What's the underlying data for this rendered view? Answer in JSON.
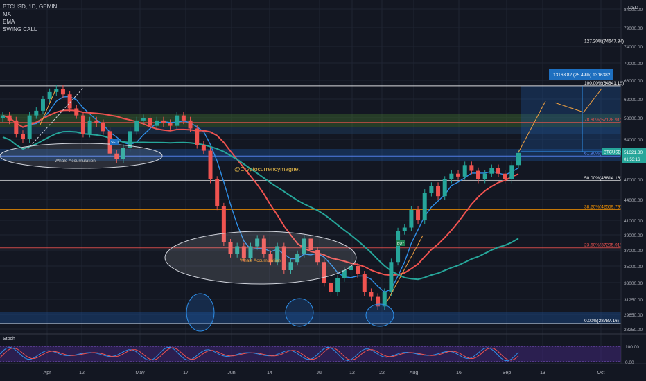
{
  "header": {
    "symbol_line": "BTCUSD, 1D, GEMINI",
    "indicators": [
      "MA",
      "EMA",
      "SWING CALL"
    ],
    "currency": "USD"
  },
  "watermark": "@Cryptocurrencymagnet",
  "annotations": {
    "whale_1": "Whale Accumulation",
    "whale_2": "Whale Accumulation",
    "measure": "13163.82 (25.49%) 1316382",
    "sell_tag": "SELL",
    "buy_tag": "BUY"
  },
  "price_tag": {
    "symbol": "BTCUSD",
    "price": "51621.30",
    "timer": "01:53:16",
    "value": 51621.3
  },
  "fib_levels": [
    {
      "label": "127.20%(74647.84)",
      "price": 74647.84,
      "color": "#ffffff"
    },
    {
      "label": "100.00%(64841.15)",
      "price": 64841.15,
      "color": "#ffffff"
    },
    {
      "label": "78.60%(57128.91)",
      "price": 57128.91,
      "color": "#ef5350"
    },
    {
      "label": "61.80%(51071.36)",
      "price": 51071.36,
      "color": "#5d8bff"
    },
    {
      "label": "50.00%(46814.16)",
      "price": 46814.16,
      "color": "#ffffff"
    },
    {
      "label": "38.20%(42559.79)",
      "price": 42559.79,
      "color": "#ff9800"
    },
    {
      "label": "23.60%(37295.91)",
      "price": 37295.91,
      "color": "#ef5350"
    },
    {
      "label": "0.00%(28787.16)",
      "price": 28787.16,
      "color": "#ffffff"
    }
  ],
  "chart_data": {
    "type": "candlestick",
    "title": "BTCUSD, 1D, GEMINI",
    "y_axis_labels": [
      "84000.00",
      "79000.00",
      "74000.00",
      "70000.00",
      "66000.00",
      "62000.00",
      "58000.00",
      "54000.00",
      "51621.30",
      "47000.00",
      "44000.00",
      "41000.00",
      "39000.00",
      "37000.00",
      "35000.00",
      "33000.00",
      "31250.00",
      "29650.00",
      "28250.00"
    ],
    "x_axis_labels": [
      "Apr",
      "12",
      "May",
      "17",
      "Jun",
      "14",
      "Jul",
      "12",
      "22",
      "Aug",
      "16",
      "Sep",
      "13",
      "Oct"
    ],
    "stoch_label": "Stoch",
    "stoch_axis_labels": [
      "100.00",
      "0.00"
    ],
    "series": [
      {
        "name": "BTCUSD",
        "approx_closes": [
          58500,
          57500,
          55000,
          54000,
          58500,
          59500,
          62000,
          63500,
          64200,
          63000,
          60000,
          58500,
          55000,
          57500,
          57000,
          55500,
          51500,
          50500,
          52500,
          55500,
          57500,
          58000,
          56500,
          57500,
          57000,
          56500,
          58500,
          57500,
          56000,
          53000,
          52000,
          47000,
          43000,
          38000,
          36500,
          37500,
          36000,
          37500,
          38500,
          36500,
          35500,
          37500,
          34500,
          35500,
          36500,
          38500,
          37000,
          35500,
          33000,
          32000,
          33500,
          34500,
          35000,
          34000,
          32000,
          31500,
          30500,
          32000,
          35500,
          39500,
          40000,
          42500,
          41000,
          45000,
          46000,
          44500,
          47000,
          48000,
          47500,
          49500,
          48500,
          47000,
          48000,
          49000,
          48000,
          47000,
          49500,
          51600
        ]
      }
    ],
    "ylim": [
      28000,
      85000
    ],
    "grid": true
  }
}
